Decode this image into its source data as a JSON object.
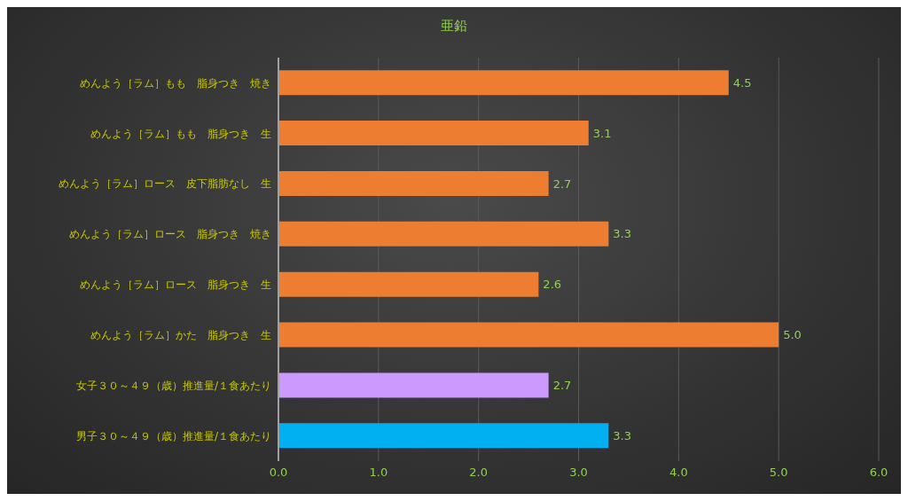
{
  "chart_data": {
    "type": "bar",
    "orientation": "horizontal",
    "title": "亜鉛",
    "categories": [
      "めんよう［ラム］もも　脂身つき　焼き",
      "めんよう［ラム］もも　脂身つき　生",
      "めんよう［ラム］ロース　皮下脂肪なし　生",
      "めんよう［ラム］ロース　脂身つき　焼き",
      "めんよう［ラム］ロース　脂身つき　生",
      "めんよう［ラム］かた　脂身つき　生",
      "女子３０～４９（歳）推進量/１食あたり",
      "男子３０～４９（歳）推進量/１食あたり"
    ],
    "values": [
      4.5,
      3.1,
      2.7,
      3.3,
      2.6,
      5.0,
      2.7,
      3.3
    ],
    "colors": [
      "#ed7d31",
      "#ed7d31",
      "#ed7d31",
      "#ed7d31",
      "#ed7d31",
      "#ed7d31",
      "#cc99ff",
      "#00b0f0"
    ],
    "xlim": [
      0,
      6
    ],
    "xticks": [
      {
        "value": 0,
        "label": "0.0"
      },
      {
        "value": 1,
        "label": "1.0"
      },
      {
        "value": 2,
        "label": "2.0"
      },
      {
        "value": 3,
        "label": "3.0"
      },
      {
        "value": 4,
        "label": "4.0"
      },
      {
        "value": 5,
        "label": "5.0"
      },
      {
        "value": 6,
        "label": "6.0"
      }
    ],
    "value_labels": [
      "4.5",
      "3.1",
      "2.7",
      "3.3",
      "2.6",
      "5.0",
      "2.7",
      "3.3"
    ],
    "grid": "x"
  }
}
